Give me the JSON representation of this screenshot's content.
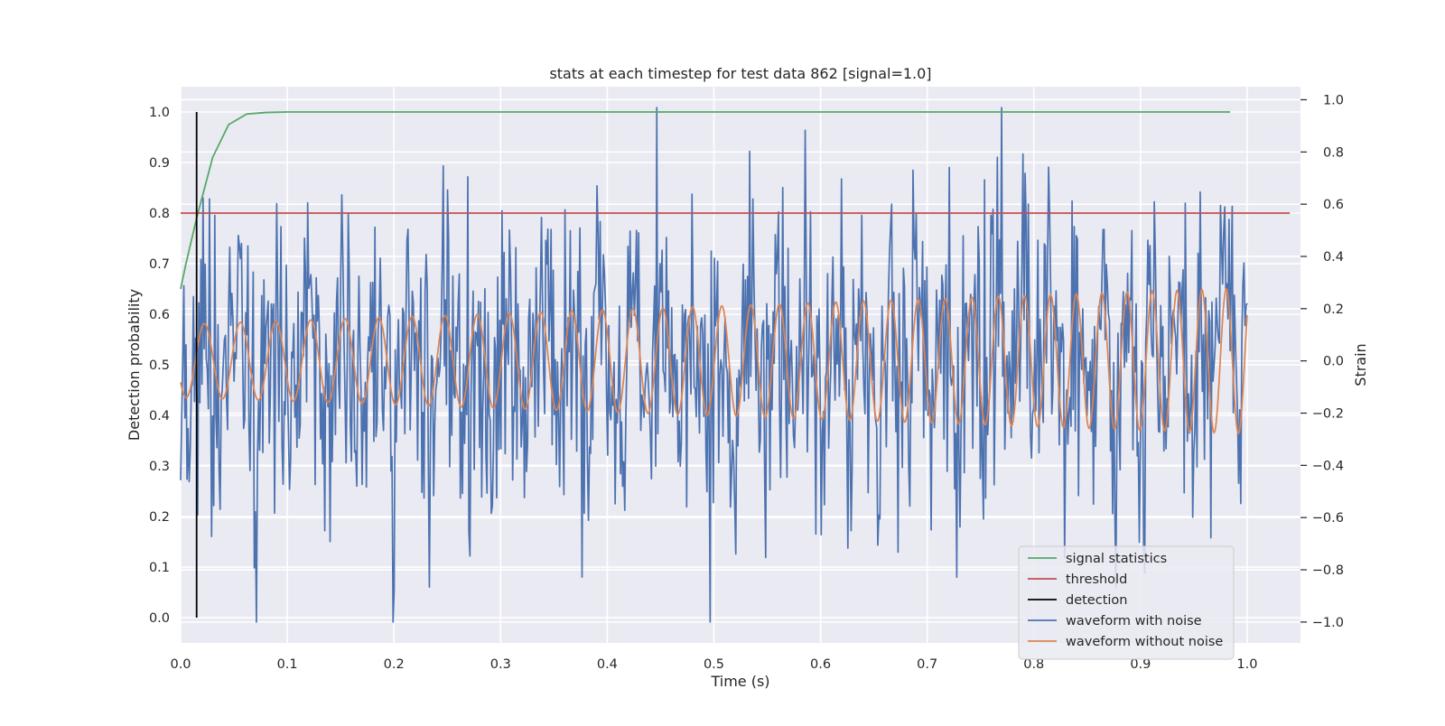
{
  "chart_data": {
    "type": "line",
    "title": "stats at each timestep for test data 862 [signal=1.0]",
    "xlabel": "Time (s)",
    "ylabel_left": "Detection probability",
    "ylabel_right": "Strain",
    "xlim": [
      0.0,
      1.05
    ],
    "ylim_left": [
      -0.05,
      1.05
    ],
    "ylim_right": [
      -1.08,
      1.05
    ],
    "xticks": [
      0.0,
      0.1,
      0.2,
      0.3,
      0.4,
      0.5,
      0.6,
      0.7,
      0.8,
      0.9,
      1.0
    ],
    "xtick_labels": [
      "0.0",
      "0.1",
      "0.2",
      "0.3",
      "0.4",
      "0.5",
      "0.6",
      "0.7",
      "0.8",
      "0.9",
      "1.0"
    ],
    "yticks_left": [
      0.0,
      0.1,
      0.2,
      0.3,
      0.4,
      0.5,
      0.6,
      0.7,
      0.8,
      0.9,
      1.0
    ],
    "ytick_labels_left": [
      "0.0",
      "0.1",
      "0.2",
      "0.3",
      "0.4",
      "0.5",
      "0.6",
      "0.7",
      "0.8",
      "0.9",
      "1.0"
    ],
    "yticks_right": [
      -1.0,
      -0.8,
      -0.6,
      -0.4,
      -0.2,
      0.0,
      0.2,
      0.4,
      0.6,
      0.8,
      1.0
    ],
    "ytick_labels_right": [
      "−1.0",
      "−0.8",
      "−0.6",
      "−0.4",
      "−0.2",
      "0.0",
      "0.2",
      "0.4",
      "0.6",
      "0.8",
      "1.0"
    ],
    "grid": true,
    "legend_position": "lower-right",
    "colors": {
      "background": "#eaeaf2",
      "grid": "#ffffff",
      "signal_statistics": "#55a868",
      "threshold": "#c44e52",
      "detection": "#000000",
      "waveform_with_noise": "#4c72b0",
      "waveform_without_noise": "#dd8452"
    },
    "series": [
      {
        "name": "signal statistics",
        "axis": "left",
        "x": [
          0.0,
          0.005,
          0.015,
          0.03,
          0.045,
          0.062,
          0.08,
          0.1,
          0.15,
          0.3,
          0.6,
          0.984
        ],
        "y": [
          0.65,
          0.7,
          0.79,
          0.91,
          0.975,
          0.996,
          0.999,
          1.0,
          1.0,
          1.0,
          1.0,
          1.0
        ]
      },
      {
        "name": "threshold",
        "axis": "left",
        "x": [
          0.0,
          1.04
        ],
        "y": [
          0.8,
          0.8
        ]
      },
      {
        "name": "detection",
        "axis": "left",
        "x": [
          0.015,
          0.015
        ],
        "y": [
          0.0,
          1.0
        ]
      },
      {
        "name": "waveform with noise",
        "axis": "right",
        "generated": {
          "n": 1000,
          "x_start": 0.0,
          "x_end": 1.0,
          "carrier_amp": 0.16,
          "noise_sd": 0.3,
          "seed": 862,
          "clip": [
            -1.0,
            0.97
          ]
        }
      },
      {
        "name": "waveform without noise",
        "axis": "right",
        "generated": {
          "n": 1000,
          "x_start": 0.0,
          "x_end": 1.0,
          "amp_start": 0.14,
          "amp_end": 0.28,
          "f_start": 29,
          "f_end": 44,
          "phase": 2.2
        }
      }
    ],
    "legend": [
      "signal statistics",
      "threshold",
      "detection",
      "waveform with noise",
      "waveform without noise"
    ]
  }
}
